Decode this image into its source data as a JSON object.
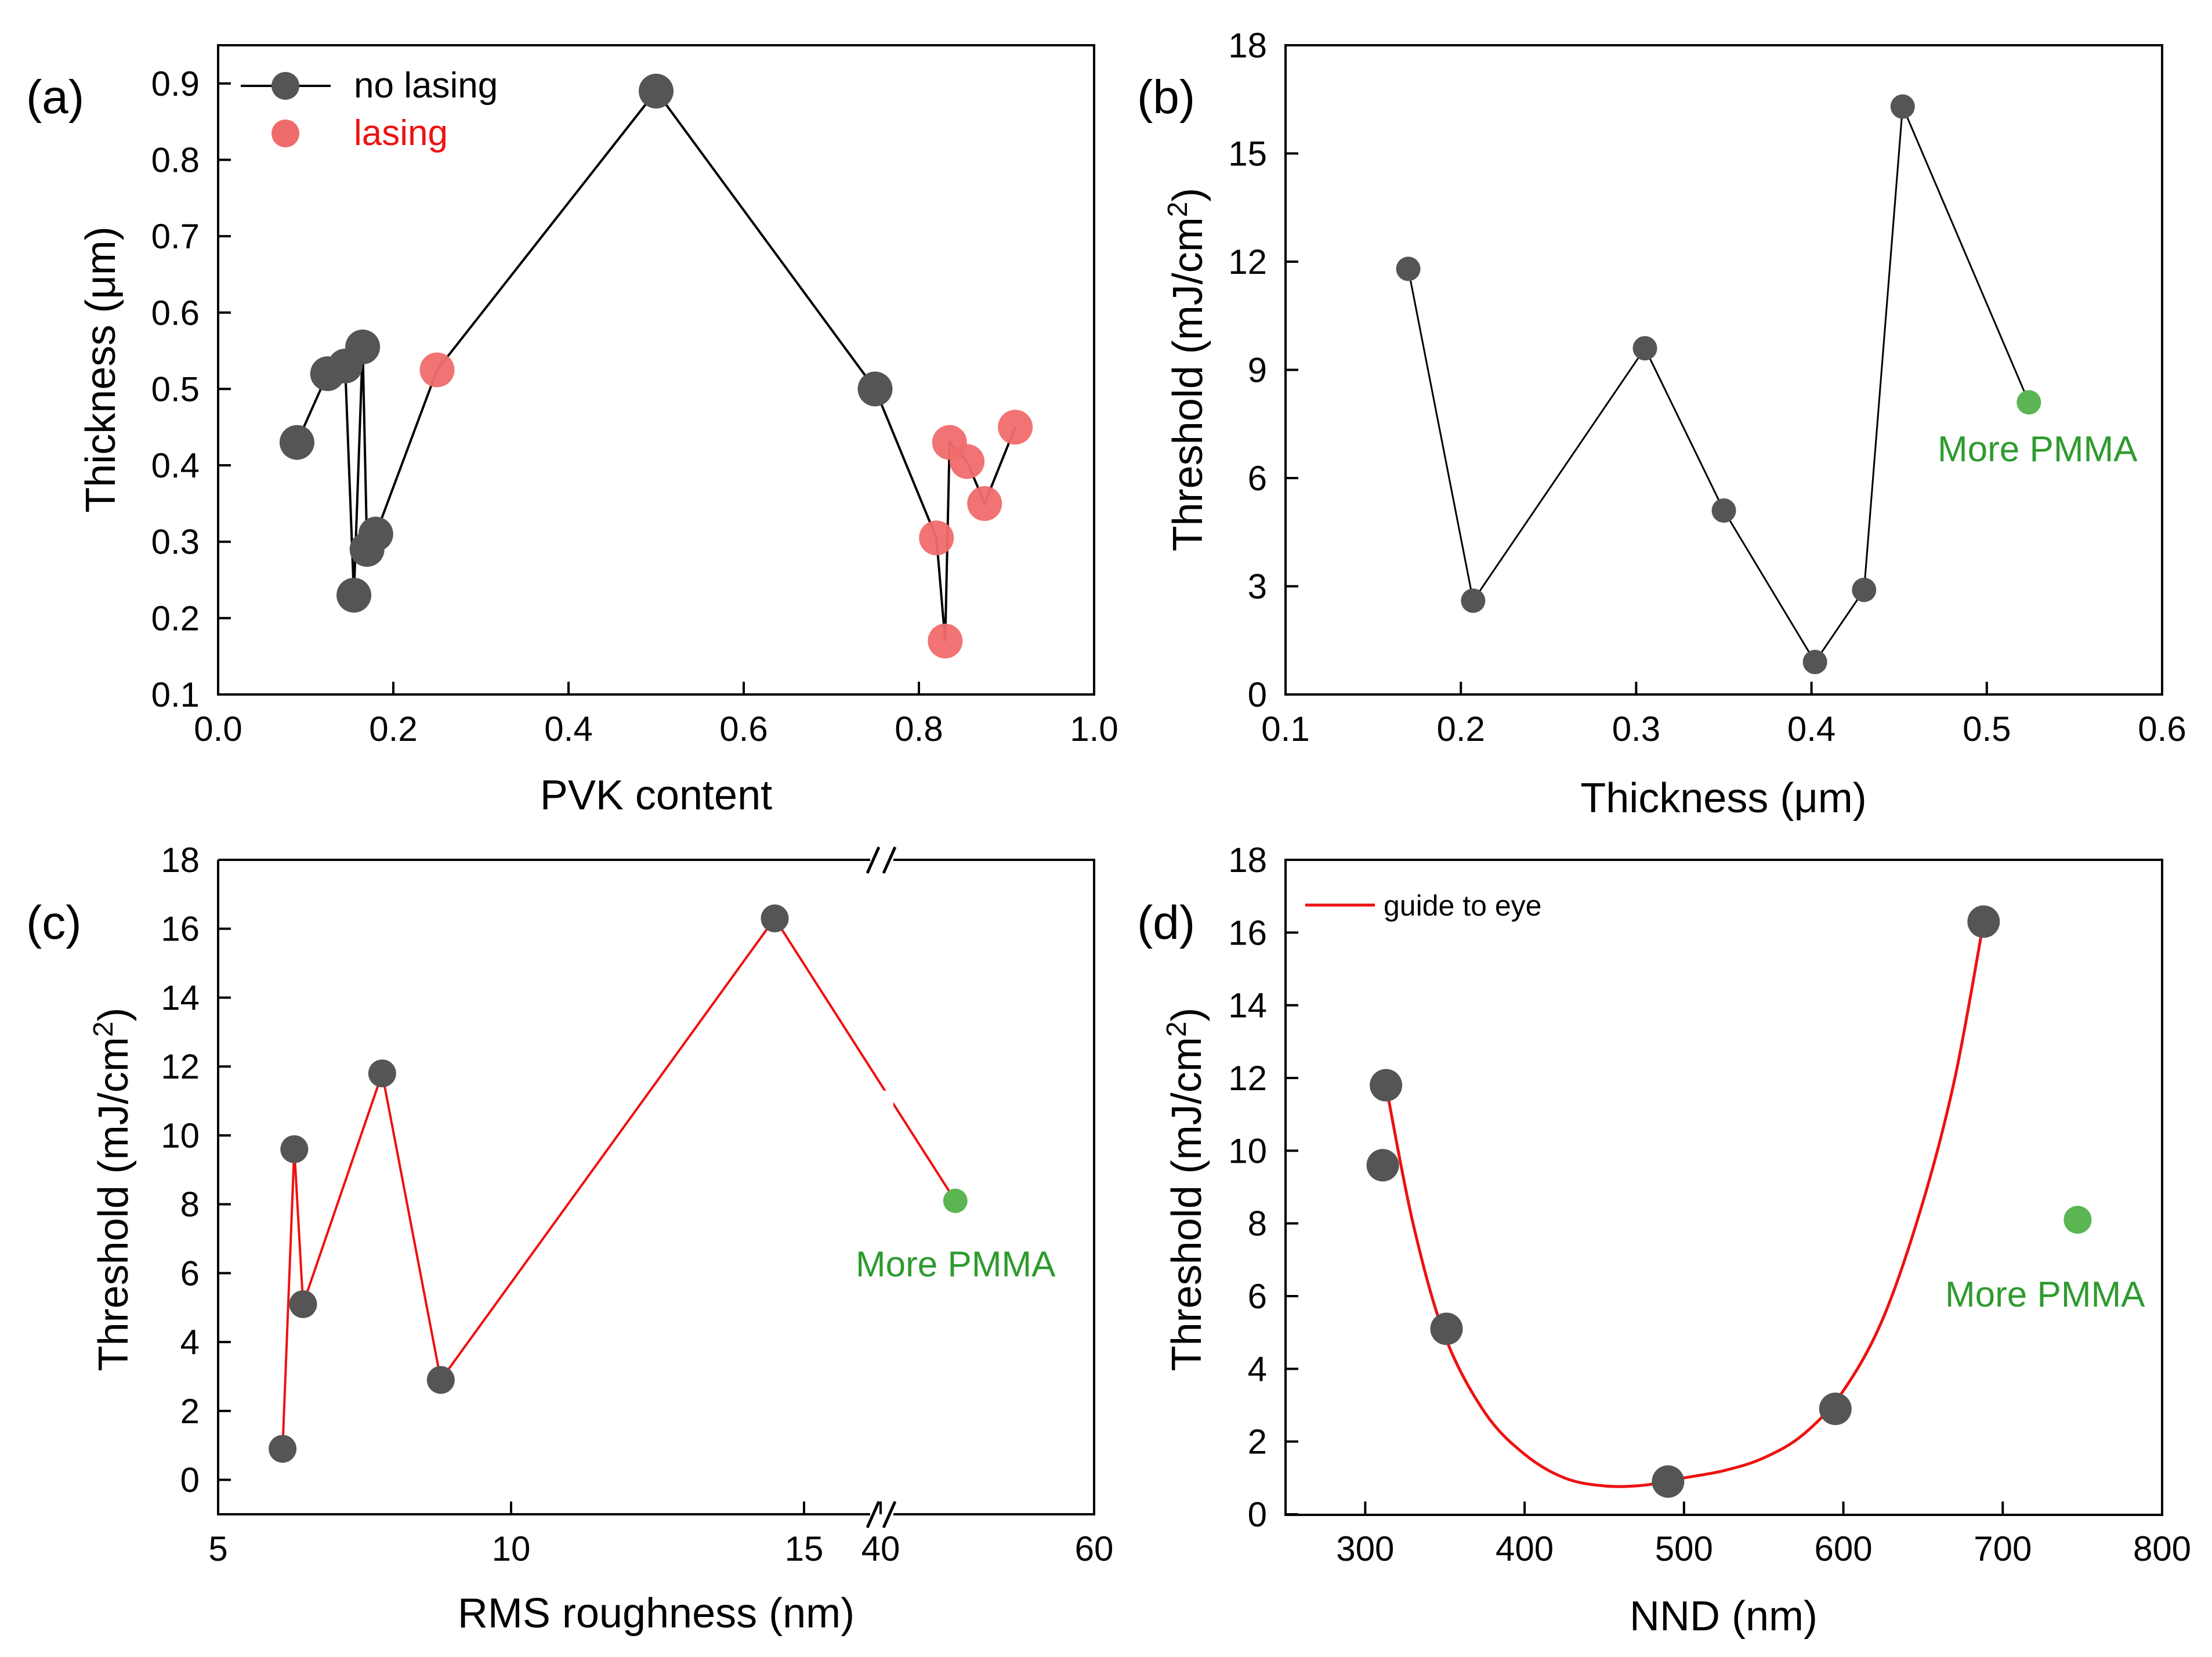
{
  "chart_data": [
    {
      "panel": "(a)",
      "type": "line",
      "title": "",
      "xlabel": "PVK content",
      "ylabel": "Thickness (μm)",
      "xlim": [
        0.0,
        1.0
      ],
      "ylim": [
        0.1,
        0.95
      ],
      "xticks": [
        "0.0",
        "0.2",
        "0.4",
        "0.6",
        "0.8",
        "1.0"
      ],
      "yticks": [
        "0.1",
        "0.2",
        "0.3",
        "0.4",
        "0.5",
        "0.6",
        "0.7",
        "0.8",
        "0.9"
      ],
      "legend": [
        {
          "label": "no lasing",
          "color": "#555555"
        },
        {
          "label": "lasing",
          "color": "#f06c6c"
        }
      ],
      "line_color": "#000000",
      "points": [
        {
          "x": 0.09,
          "y": 0.43,
          "group": "no lasing"
        },
        {
          "x": 0.125,
          "y": 0.52,
          "group": "no lasing"
        },
        {
          "x": 0.145,
          "y": 0.53,
          "group": "no lasing"
        },
        {
          "x": 0.155,
          "y": 0.23,
          "group": "no lasing"
        },
        {
          "x": 0.165,
          "y": 0.555,
          "group": "no lasing"
        },
        {
          "x": 0.17,
          "y": 0.29,
          "group": "no lasing"
        },
        {
          "x": 0.18,
          "y": 0.31,
          "group": "no lasing"
        },
        {
          "x": 0.25,
          "y": 0.525,
          "group": "lasing"
        },
        {
          "x": 0.5,
          "y": 0.89,
          "group": "no lasing"
        },
        {
          "x": 0.75,
          "y": 0.5,
          "group": "no lasing"
        },
        {
          "x": 0.82,
          "y": 0.305,
          "group": "lasing"
        },
        {
          "x": 0.83,
          "y": 0.17,
          "group": "lasing"
        },
        {
          "x": 0.835,
          "y": 0.43,
          "group": "lasing"
        },
        {
          "x": 0.855,
          "y": 0.405,
          "group": "lasing"
        },
        {
          "x": 0.875,
          "y": 0.35,
          "group": "lasing"
        },
        {
          "x": 0.91,
          "y": 0.45,
          "group": "lasing"
        }
      ]
    },
    {
      "panel": "(b)",
      "type": "line",
      "title": "",
      "xlabel": "Thickness (μm)",
      "ylabel": "Threshold (mJ/cm²)",
      "xlim": [
        0.1,
        0.6
      ],
      "ylim": [
        0,
        18
      ],
      "xticks": [
        "0.1",
        "0.2",
        "0.3",
        "0.4",
        "0.5",
        "0.6"
      ],
      "yticks": [
        "0",
        "3",
        "6",
        "9",
        "12",
        "15",
        "18"
      ],
      "line_color": "#000000",
      "series": [
        {
          "name": "data",
          "color": "#555555",
          "points": [
            {
              "x": 0.17,
              "y": 11.8
            },
            {
              "x": 0.207,
              "y": 2.6
            },
            {
              "x": 0.305,
              "y": 9.6
            },
            {
              "x": 0.35,
              "y": 5.1
            },
            {
              "x": 0.402,
              "y": 0.9
            },
            {
              "x": 0.43,
              "y": 2.9
            },
            {
              "x": 0.452,
              "y": 16.3
            }
          ]
        },
        {
          "name": "More PMMA",
          "color": "#5ab552",
          "points": [
            {
              "x": 0.524,
              "y": 8.1
            }
          ]
        }
      ],
      "annotations": [
        "More PMMA"
      ]
    },
    {
      "panel": "(c)",
      "type": "line",
      "title": "",
      "xlabel": "RMS roughness (nm)",
      "ylabel": "Threshold (mJ/cm²)",
      "xlim": [
        5,
        60
      ],
      "x_axis_break": {
        "left_segment": [
          5,
          16
        ],
        "right_segment": [
          40,
          60
        ]
      },
      "ylim": [
        -1,
        18
      ],
      "xticks": [
        "5",
        "10",
        "15",
        "40",
        "60"
      ],
      "yticks": [
        "0",
        "2",
        "4",
        "6",
        "8",
        "10",
        "12",
        "14",
        "16",
        "18"
      ],
      "line_color": "#ee1111",
      "series": [
        {
          "name": "data",
          "color": "#555555",
          "points": [
            {
              "x": 6.1,
              "y": 0.9
            },
            {
              "x": 6.3,
              "y": 9.6
            },
            {
              "x": 6.45,
              "y": 5.1
            },
            {
              "x": 7.8,
              "y": 11.8
            },
            {
              "x": 8.8,
              "y": 2.9
            },
            {
              "x": 14.5,
              "y": 16.3
            }
          ]
        },
        {
          "name": "More PMMA",
          "color": "#5ab552",
          "points": [
            {
              "x": 47,
              "y": 8.1
            }
          ]
        }
      ],
      "annotations": [
        "More PMMA"
      ]
    },
    {
      "panel": "(d)",
      "type": "scatter",
      "title": "",
      "xlabel": "NND (nm)",
      "ylabel": "Threshold (mJ/cm²)",
      "xlim": [
        250,
        800
      ],
      "ylim": [
        0,
        18
      ],
      "xticks": [
        "300",
        "400",
        "500",
        "600",
        "700",
        "800"
      ],
      "yticks": [
        "0",
        "2",
        "4",
        "6",
        "8",
        "10",
        "12",
        "14",
        "16",
        "18"
      ],
      "legend": [
        {
          "label": "guide to eye",
          "color": "#ee1111"
        }
      ],
      "series": [
        {
          "name": "data",
          "color": "#555555",
          "points": [
            {
              "x": 313,
              "y": 11.8
            },
            {
              "x": 311,
              "y": 9.6
            },
            {
              "x": 351,
              "y": 5.1
            },
            {
              "x": 490,
              "y": 0.9
            },
            {
              "x": 595,
              "y": 2.9
            },
            {
              "x": 688,
              "y": 16.3
            }
          ]
        },
        {
          "name": "More PMMA",
          "color": "#5ab552",
          "points": [
            {
              "x": 747,
              "y": 8.1
            }
          ]
        }
      ],
      "guide_curve": [
        {
          "x": 313,
          "y": 11.8
        },
        {
          "x": 330,
          "y": 8.0
        },
        {
          "x": 350,
          "y": 4.9
        },
        {
          "x": 375,
          "y": 2.8
        },
        {
          "x": 400,
          "y": 1.65
        },
        {
          "x": 425,
          "y": 1.0
        },
        {
          "x": 450,
          "y": 0.78
        },
        {
          "x": 475,
          "y": 0.8
        },
        {
          "x": 500,
          "y": 1.0
        },
        {
          "x": 525,
          "y": 1.2
        },
        {
          "x": 550,
          "y": 1.55
        },
        {
          "x": 575,
          "y": 2.2
        },
        {
          "x": 600,
          "y": 3.4
        },
        {
          "x": 625,
          "y": 5.4
        },
        {
          "x": 650,
          "y": 8.6
        },
        {
          "x": 670,
          "y": 12.0
        },
        {
          "x": 688,
          "y": 16.3
        }
      ],
      "annotations": [
        "More PMMA"
      ]
    }
  ]
}
